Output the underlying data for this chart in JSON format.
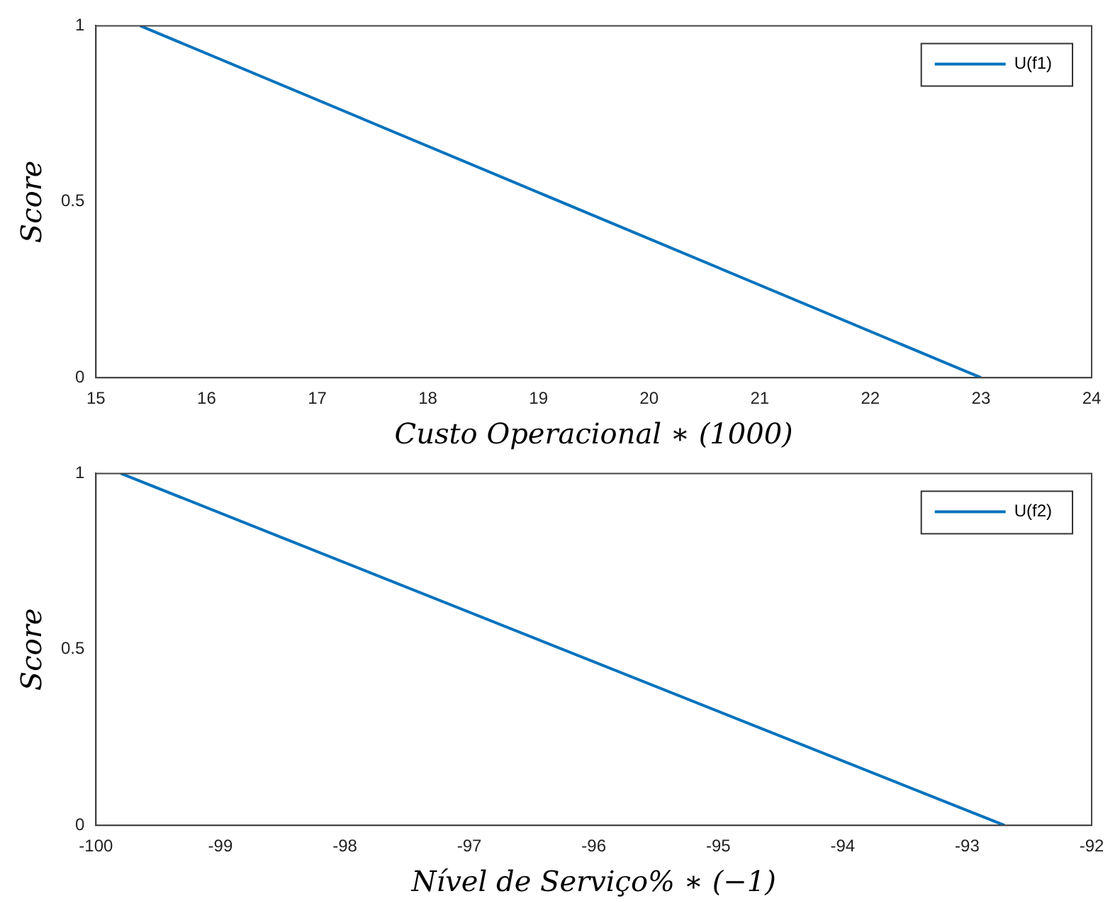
{
  "chart_data": [
    {
      "type": "line",
      "xlabel": "Custo Operacional ∗ (1000)",
      "ylabel": "Score",
      "xlim": [
        15,
        24
      ],
      "xticks": [
        15,
        16,
        17,
        18,
        19,
        20,
        21,
        22,
        23,
        24
      ],
      "ylim": [
        0,
        1
      ],
      "yticks": [
        0,
        0.5,
        1
      ],
      "grid": false,
      "legend": "top right",
      "marker": "none",
      "line_style": "solid",
      "series": [
        {
          "name": "U(f1)",
          "color": "#0072bd",
          "x": [
            15.4,
            23
          ],
          "values": [
            1,
            0
          ]
        }
      ]
    },
    {
      "type": "line",
      "xlabel": "Nível de Serviço% ∗ (−1)",
      "ylabel": "Score",
      "xlim": [
        -100,
        -92
      ],
      "xticks": [
        -100,
        -99,
        -98,
        -97,
        -96,
        -95,
        -94,
        -93,
        -92
      ],
      "ylim": [
        0,
        1
      ],
      "yticks": [
        0,
        0.5,
        1
      ],
      "grid": false,
      "legend": "top right",
      "marker": "none",
      "line_style": "solid",
      "series": [
        {
          "name": "U(f2)",
          "color": "#0072bd",
          "x": [
            -99.8,
            -92.7
          ],
          "values": [
            1,
            0
          ]
        }
      ]
    }
  ]
}
